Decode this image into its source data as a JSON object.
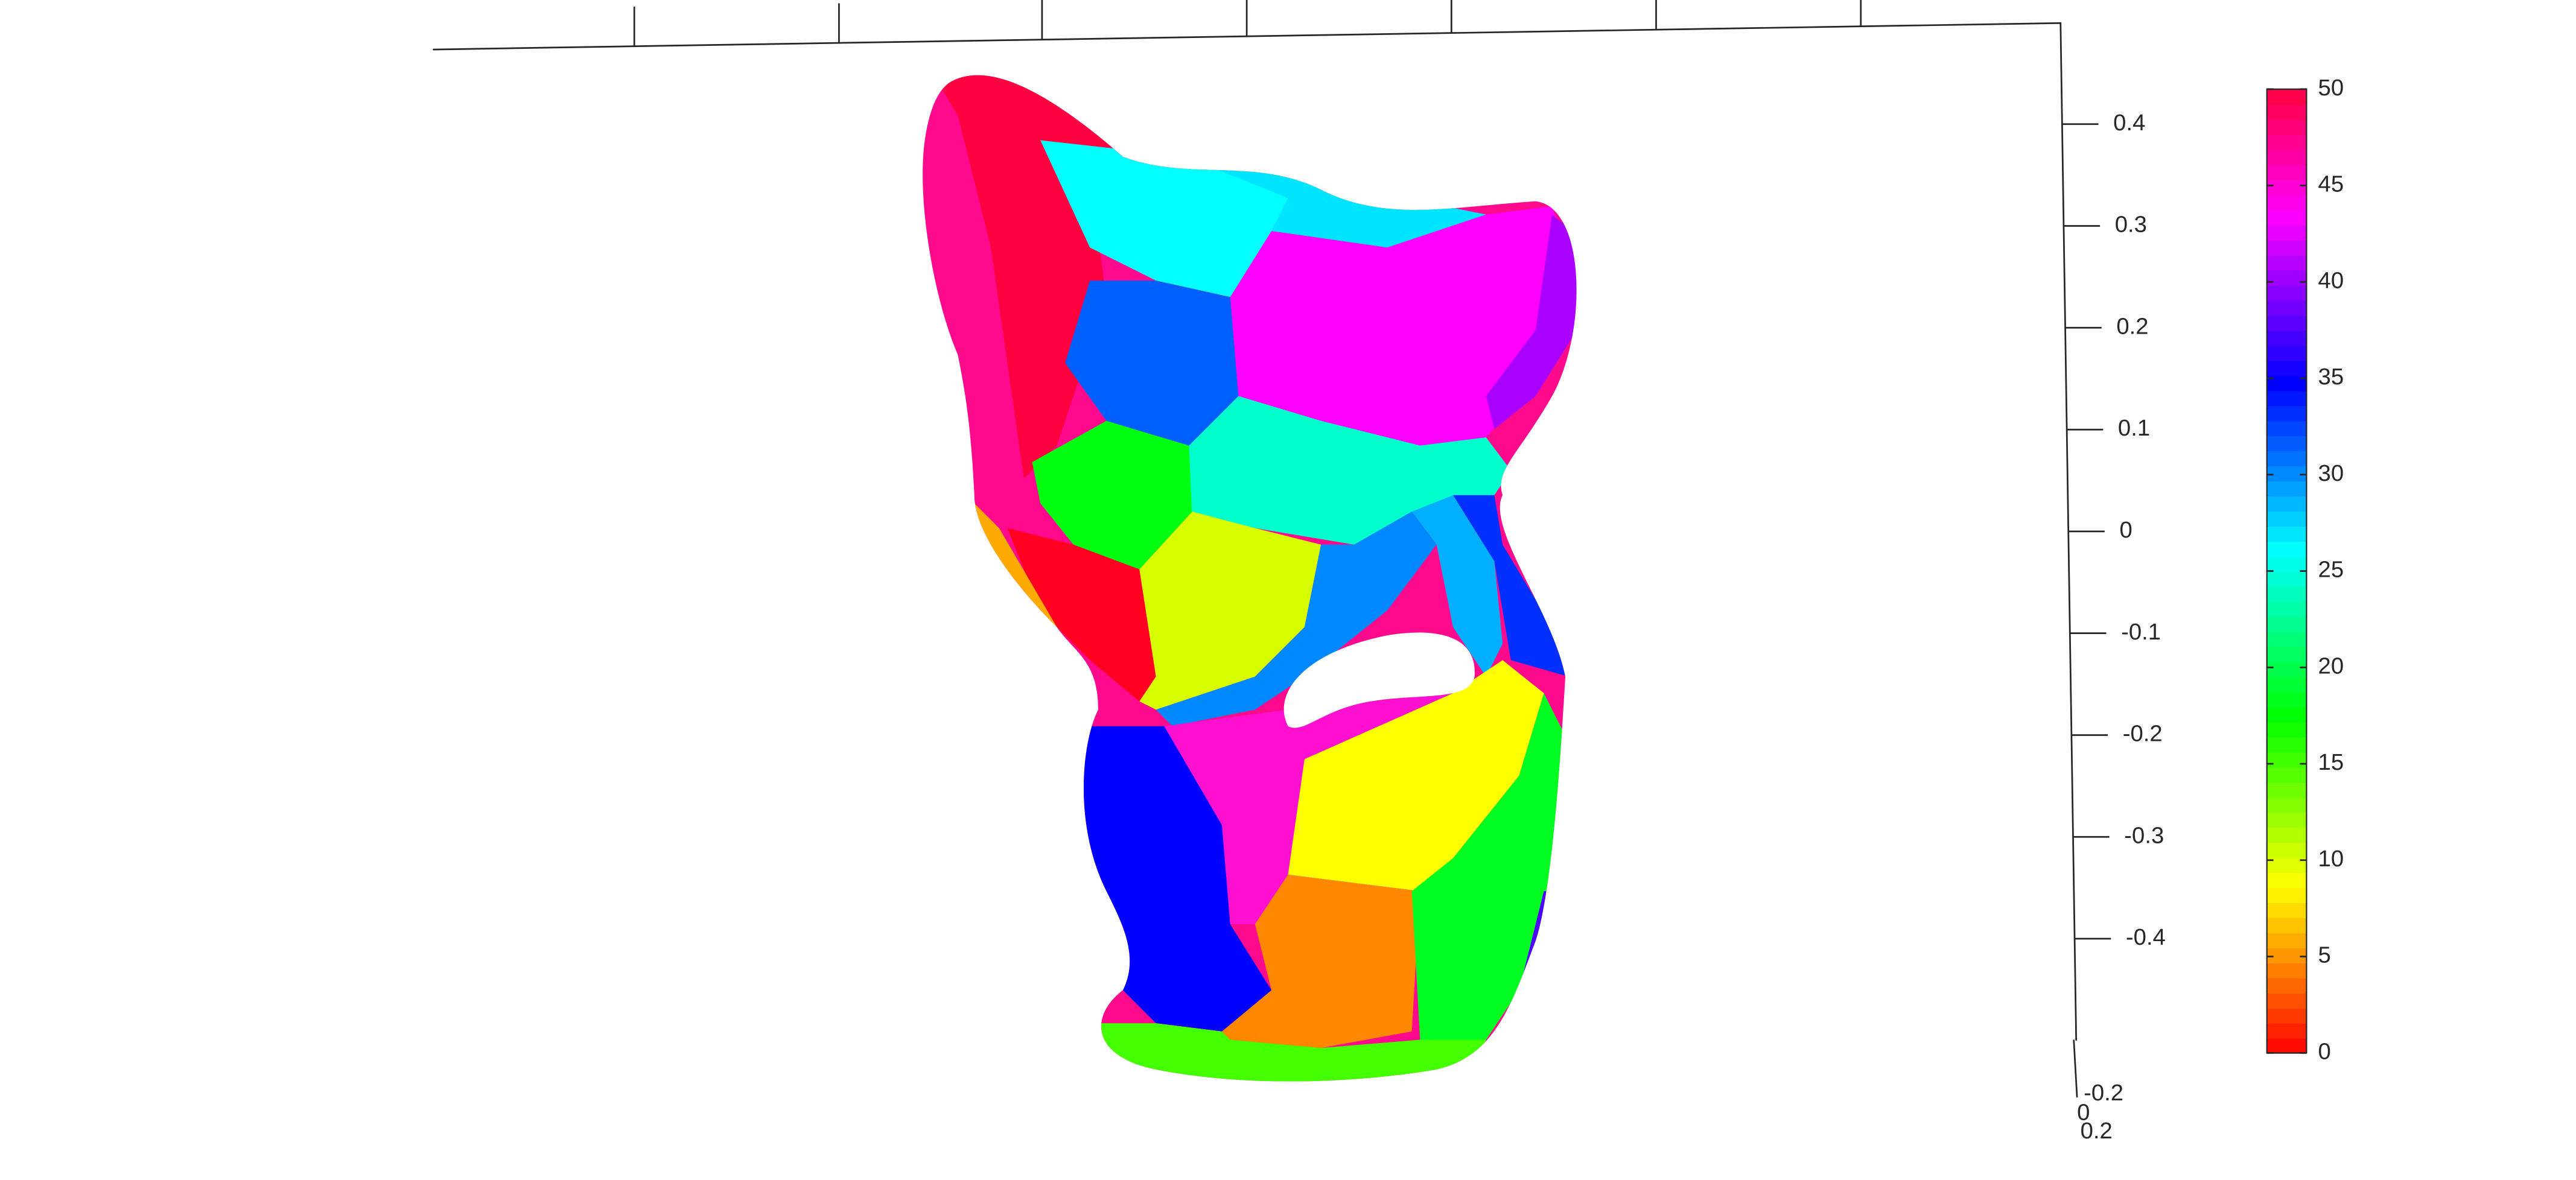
{
  "chart_data": {
    "type": "surface3d",
    "zlim": [
      -0.5,
      0.5
    ],
    "zticks": [
      0.4,
      0.3,
      0.2,
      0.1,
      0,
      -0.1,
      -0.2,
      -0.3,
      -0.4
    ],
    "xticks": [
      -0.2
    ],
    "yticks": [
      0,
      0.2
    ],
    "colormap": "hsv",
    "clim": [
      0,
      50
    ],
    "cticks": [
      0,
      5,
      10,
      15,
      20,
      25,
      30,
      35,
      40,
      45,
      50
    ]
  }
}
